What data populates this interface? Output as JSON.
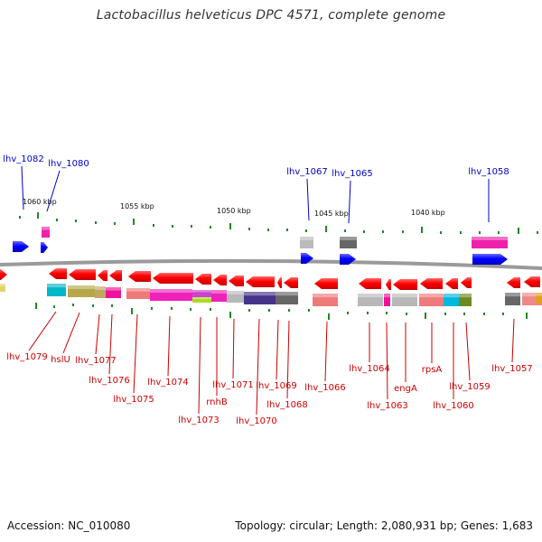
{
  "title": "Lactobacillus helveticus DPC 4571, complete genome",
  "scale": {
    "ticks": [
      {
        "label": "1060 kbp",
        "kbp": 1060
      },
      {
        "label": "1055 kbp",
        "kbp": 1055
      },
      {
        "label": "1050 kbp",
        "kbp": 1050
      },
      {
        "label": "1045 kbp",
        "kbp": 1045
      },
      {
        "label": "1040 kbp",
        "kbp": 1040
      }
    ]
  },
  "genes_top": [
    {
      "label": "lhv_1082"
    },
    {
      "label": "lhv_1080"
    },
    {
      "label": "lhv_1067"
    },
    {
      "label": "lhv_1065"
    },
    {
      "label": "lhv_1058"
    }
  ],
  "genes_bottom": [
    {
      "label": "lhv_1079"
    },
    {
      "label": "hslU"
    },
    {
      "label": "lhv_1077"
    },
    {
      "label": "lhv_1076"
    },
    {
      "label": "lhv_1075"
    },
    {
      "label": "lhv_1074"
    },
    {
      "label": "lhv_1073"
    },
    {
      "label": "rnhB"
    },
    {
      "label": "lhv_1071"
    },
    {
      "label": "lhv_1070"
    },
    {
      "label": "lhv_1069"
    },
    {
      "label": "lhv_1068"
    },
    {
      "label": "lhv_1066"
    },
    {
      "label": "lhv_1064"
    },
    {
      "label": "lhv_1063"
    },
    {
      "label": "engA"
    },
    {
      "label": "rpsA"
    },
    {
      "label": "lhv_1060"
    },
    {
      "label": "lhv_1059"
    },
    {
      "label": "lhv_1057"
    }
  ],
  "colors": {
    "forward": "#0000ee",
    "reverse": "#ee0000",
    "forward_label": "#0000cc",
    "reverse_label": "#cc0000",
    "tick": "#228822",
    "backbone": "#888888"
  },
  "footer": {
    "accession": "Accession: NC_010080",
    "topology": "Topology: circular; Length: 2,080,931 bp; Genes: 1,683"
  }
}
